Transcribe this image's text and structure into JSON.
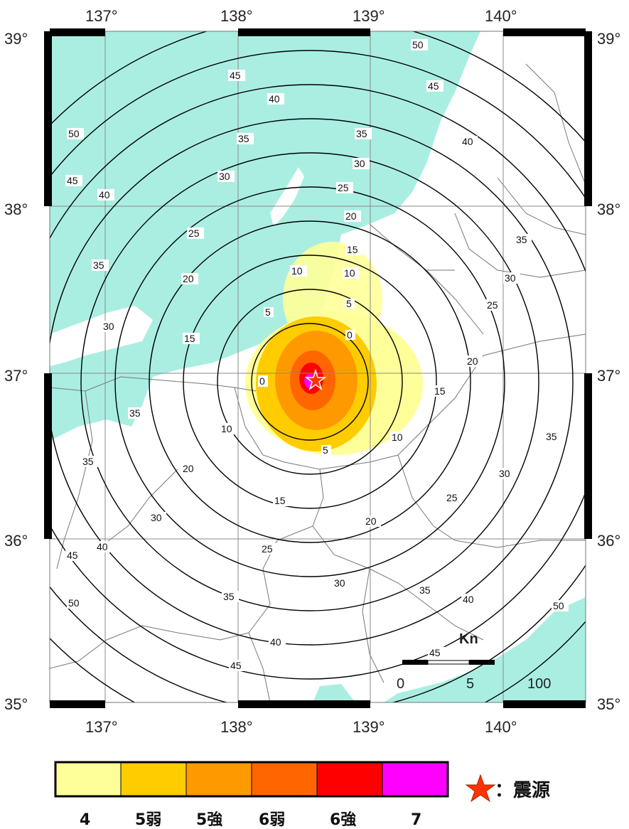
{
  "map": {
    "lon_ticks": [
      "137°",
      "138°",
      "139°",
      "140°"
    ],
    "lat_ticks": [
      "39°",
      "38°",
      "37°",
      "36°",
      "35°"
    ],
    "contour_labels": [
      "0",
      "5",
      "10",
      "15",
      "20",
      "25",
      "30",
      "35",
      "40",
      "45",
      "50"
    ],
    "scale_bar": {
      "unit_partial": "Kn",
      "labels": [
        "0",
        "5",
        "100"
      ]
    },
    "colors": {
      "sea": "#aaeee2",
      "land": "#ffffff",
      "grid": "#8a8a8a",
      "contour": "#000000"
    }
  },
  "legend": {
    "items": [
      {
        "label": "4",
        "color": "#ffff99"
      },
      {
        "label": "5弱",
        "color": "#ffcc00"
      },
      {
        "label": "5強",
        "color": "#ff9900"
      },
      {
        "label": "6弱",
        "color": "#ff6600"
      },
      {
        "label": "6強",
        "color": "#ff0000"
      },
      {
        "label": "7",
        "color": "#ff00ff"
      }
    ],
    "epicenter_label": "：震源",
    "epicenter_color": "#ff3300"
  }
}
